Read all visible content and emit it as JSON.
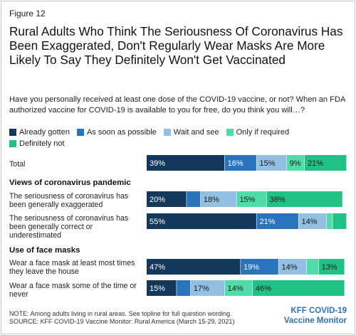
{
  "figure_label": "Figure 12",
  "title": "Rural Adults Who Think The Seriousness Of Coronavirus Has Been Exaggerated, Don't Regularly Wear Masks Are More Likely To Say They Definitely Won't Get Vaccinated",
  "subtitle": "Have you personally received at least one dose of the COVID-19 vaccine, or not? When an FDA authorized vaccine for COVID-19 is available to you for free, do you think you will…?",
  "note": "NOTE: Among adults living in rural areas. See topline for full question wording.",
  "source": "SOURCE: KFF COVID-19 Vaccine Monitor: Rural America (March 15-29, 2021)",
  "brand": {
    "line1": "KFF COVID-19",
    "line2": "Vaccine Monitor"
  },
  "sections": {
    "views": "Views of coronavirus pandemic",
    "masks": "Use of face masks"
  },
  "chart_data": {
    "type": "bar",
    "orientation": "horizontal",
    "stacked": true,
    "xlim": [
      0,
      100
    ],
    "legend_position": "top",
    "series": [
      {
        "name": "Already gotten",
        "color": "#14375c"
      },
      {
        "name": "As soon as possible",
        "color": "#2a74bd"
      },
      {
        "name": "Wait and see",
        "color": "#93bfe3"
      },
      {
        "name": "Only if required",
        "color": "#4fdca8"
      },
      {
        "name": "Definitely not",
        "color": "#21c186"
      }
    ],
    "categories": [
      "Total",
      "The seriousness of coronavirus has been generally exaggerated",
      "The seriousness of coronavirus has been generally correct or underestimated",
      "Wear a face mask at least most times they leave the house",
      "Wear a face mask some of the time or never"
    ],
    "values": [
      [
        39,
        16,
        15,
        9,
        21
      ],
      [
        20,
        7,
        18,
        15,
        38
      ],
      [
        55,
        21,
        14,
        3,
        7
      ],
      [
        47,
        19,
        14,
        6,
        13
      ],
      [
        15,
        7,
        17,
        14,
        46
      ]
    ],
    "data_labels": [
      [
        "39%",
        "16%",
        "15%",
        "9%",
        "21%"
      ],
      [
        "20%",
        "",
        "18%",
        "15%",
        "38%"
      ],
      [
        "55%",
        "21%",
        "14%",
        "",
        ""
      ],
      [
        "47%",
        "19%",
        "14%",
        "",
        "13%"
      ],
      [
        "15%",
        "",
        "17%",
        "14%",
        "46%"
      ]
    ]
  }
}
